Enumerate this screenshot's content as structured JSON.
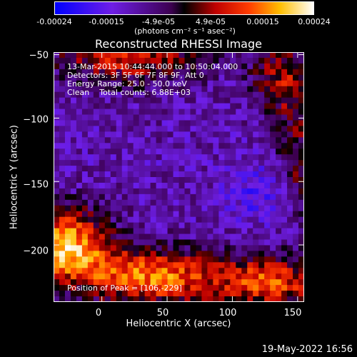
{
  "colorbar": {
    "ticks": [
      "-0.00024",
      "-0.00015",
      "-4.9e-05",
      "4.9e-05",
      "0.00015",
      "0.00024"
    ],
    "units": "(photons cm⁻² s⁻¹ asec⁻²)"
  },
  "chart_data": {
    "type": "heatmap",
    "title": "Reconstructed RHESSI Image",
    "xlabel": "Heliocentric X (arcsec)",
    "ylabel": "Heliocentric Y (arcsec)",
    "xlim": [
      -37,
      155
    ],
    "ylim": [
      -245,
      -48
    ],
    "x_ticks": [
      "0",
      "50",
      "100",
      "150"
    ],
    "y_ticks": [
      "−50",
      "−100",
      "−150",
      "−200"
    ],
    "x_tick_values": [
      0,
      50,
      100,
      150
    ],
    "y_tick_values": [
      -50,
      -100,
      -150,
      -200
    ],
    "colormap": "blue-purple-red-yellow-white",
    "vmin": -0.00024,
    "vmax": 0.00024,
    "peak": [
      106,
      -229
    ],
    "annotations": {
      "time_range": "13-Mar-2015 10:44:44.000 to 10:50:04.000",
      "detectors": "Detectors: 3F 5F 6F 7F 8F 9F, Att 0",
      "energy": "Energy Range: 25.0 - 50.0 keV",
      "clean": "Clean    Total counts: 6.88E+03",
      "peak_text": "Position of Peak = [106,-229]"
    }
  },
  "footer": {
    "timestamp": "19-May-2022 16:56"
  }
}
